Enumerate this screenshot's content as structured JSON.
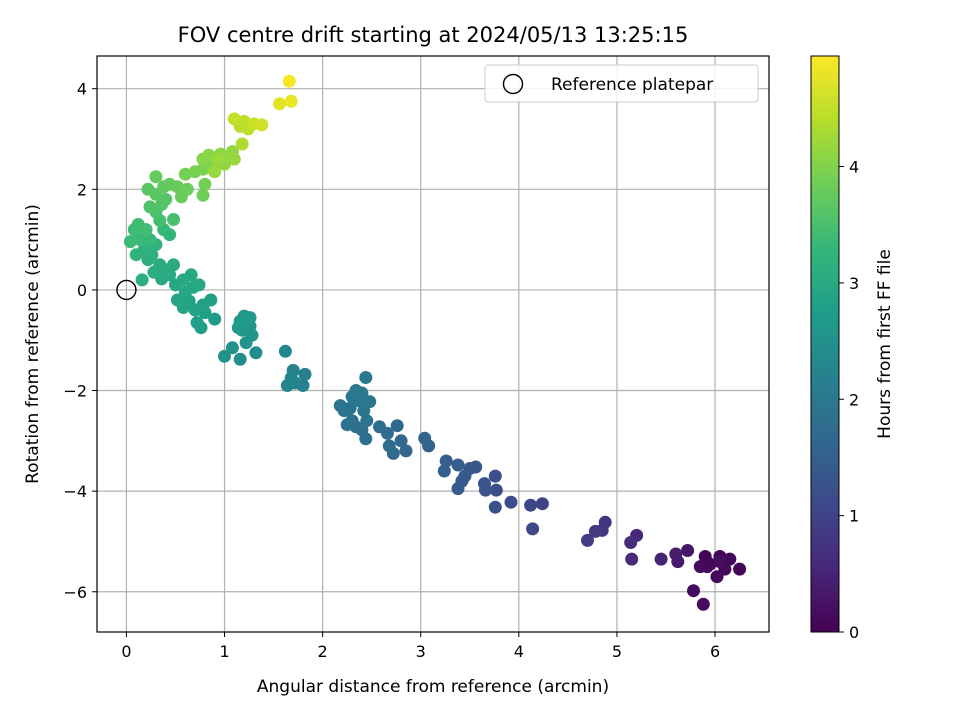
{
  "chart_data": {
    "type": "scatter",
    "title": "FOV centre drift starting at 2024/05/13 13:25:15",
    "xlabel": "Angular distance from reference (arcmin)",
    "ylabel": "Rotation from reference (arcmin)",
    "xlim": [
      -0.3,
      6.55
    ],
    "ylim": [
      -6.8,
      4.65
    ],
    "x_ticks": [
      0,
      1,
      2,
      3,
      4,
      5,
      6
    ],
    "y_ticks": [
      -6,
      -4,
      -2,
      0,
      2,
      4
    ],
    "x_tick_labels": [
      "0",
      "1",
      "2",
      "3",
      "4",
      "5",
      "6"
    ],
    "y_tick_labels": [
      "−6",
      "−4",
      "−2",
      "0",
      "2",
      "4"
    ],
    "grid": true,
    "legend": {
      "placement": "top-right",
      "entries": [
        {
          "label": "Reference platepar",
          "marker": "open-circle"
        }
      ]
    },
    "reference_point": {
      "x": 0,
      "y": 0
    },
    "colorbar": {
      "label": "Hours from first FF file",
      "colormap": "viridis",
      "range": [
        0,
        4.95
      ],
      "ticks": [
        0,
        1,
        2,
        3,
        4
      ],
      "tick_labels": [
        "0",
        "1",
        "2",
        "3",
        "4"
      ]
    },
    "colormap_stops": [
      "#440154",
      "#482878",
      "#3e4989",
      "#31688e",
      "#26828e",
      "#1f9e89",
      "#35b779",
      "#6ece58",
      "#b5de2b",
      "#fde725"
    ],
    "points": [
      {
        "x": 5.9,
        "y": -5.3,
        "t": 0.05
      },
      {
        "x": 6.05,
        "y": -5.3,
        "t": 0.06
      },
      {
        "x": 5.95,
        "y": -5.45,
        "t": 0.07
      },
      {
        "x": 6.15,
        "y": -5.35,
        "t": 0.08
      },
      {
        "x": 6.25,
        "y": -5.55,
        "t": 0.09
      },
      {
        "x": 6.1,
        "y": -5.55,
        "t": 0.1
      },
      {
        "x": 6.02,
        "y": -5.7,
        "t": 0.11
      },
      {
        "x": 5.92,
        "y": -5.5,
        "t": 0.12
      },
      {
        "x": 5.85,
        "y": -5.5,
        "t": 0.13
      },
      {
        "x": 5.88,
        "y": -6.25,
        "t": 0.15
      },
      {
        "x": 5.78,
        "y": -5.98,
        "t": 0.17
      },
      {
        "x": 6.05,
        "y": -5.4,
        "t": 0.18
      },
      {
        "x": 5.72,
        "y": -5.18,
        "t": 0.3
      },
      {
        "x": 5.62,
        "y": -5.4,
        "t": 0.35
      },
      {
        "x": 5.6,
        "y": -5.25,
        "t": 0.4
      },
      {
        "x": 5.45,
        "y": -5.35,
        "t": 0.5
      },
      {
        "x": 5.2,
        "y": -4.88,
        "t": 0.55
      },
      {
        "x": 5.15,
        "y": -5.35,
        "t": 0.6
      },
      {
        "x": 5.14,
        "y": -5.02,
        "t": 0.65
      },
      {
        "x": 4.88,
        "y": -4.62,
        "t": 0.75
      },
      {
        "x": 4.85,
        "y": -4.78,
        "t": 0.8
      },
      {
        "x": 4.78,
        "y": -4.8,
        "t": 0.85
      },
      {
        "x": 4.7,
        "y": -4.98,
        "t": 0.9
      },
      {
        "x": 4.24,
        "y": -4.25,
        "t": 1.0
      },
      {
        "x": 4.12,
        "y": -4.28,
        "t": 1.05
      },
      {
        "x": 4.14,
        "y": -4.75,
        "t": 1.1
      },
      {
        "x": 3.92,
        "y": -4.22,
        "t": 1.15
      },
      {
        "x": 3.76,
        "y": -3.7,
        "t": 1.2
      },
      {
        "x": 3.77,
        "y": -3.98,
        "t": 1.22
      },
      {
        "x": 3.76,
        "y": -4.32,
        "t": 1.25
      },
      {
        "x": 3.65,
        "y": -3.85,
        "t": 1.28
      },
      {
        "x": 3.66,
        "y": -3.98,
        "t": 1.3
      },
      {
        "x": 3.56,
        "y": -3.52,
        "t": 1.33
      },
      {
        "x": 3.5,
        "y": -3.55,
        "t": 1.35
      },
      {
        "x": 3.45,
        "y": -3.7,
        "t": 1.38
      },
      {
        "x": 3.42,
        "y": -3.8,
        "t": 1.4
      },
      {
        "x": 3.38,
        "y": -3.95,
        "t": 1.42
      },
      {
        "x": 3.38,
        "y": -3.48,
        "t": 1.45
      },
      {
        "x": 3.26,
        "y": -3.4,
        "t": 1.48
      },
      {
        "x": 3.24,
        "y": -3.6,
        "t": 1.5
      },
      {
        "x": 3.08,
        "y": -3.1,
        "t": 1.55
      },
      {
        "x": 3.04,
        "y": -2.95,
        "t": 1.58
      },
      {
        "x": 2.85,
        "y": -3.2,
        "t": 1.62
      },
      {
        "x": 2.8,
        "y": -3.0,
        "t": 1.65
      },
      {
        "x": 2.76,
        "y": -2.7,
        "t": 1.68
      },
      {
        "x": 2.72,
        "y": -3.25,
        "t": 1.7
      },
      {
        "x": 2.68,
        "y": -3.1,
        "t": 1.72
      },
      {
        "x": 2.66,
        "y": -2.85,
        "t": 1.74
      },
      {
        "x": 2.58,
        "y": -2.72,
        "t": 1.76
      },
      {
        "x": 2.44,
        "y": -2.96,
        "t": 1.78
      },
      {
        "x": 2.4,
        "y": -2.78,
        "t": 1.8
      },
      {
        "x": 2.34,
        "y": -2.72,
        "t": 1.82
      },
      {
        "x": 2.3,
        "y": -2.6,
        "t": 1.84
      },
      {
        "x": 2.28,
        "y": -2.35,
        "t": 1.86
      },
      {
        "x": 2.25,
        "y": -2.68,
        "t": 1.88
      },
      {
        "x": 2.22,
        "y": -2.4,
        "t": 1.9
      },
      {
        "x": 2.18,
        "y": -2.3,
        "t": 1.92
      },
      {
        "x": 2.48,
        "y": -2.22,
        "t": 1.93
      },
      {
        "x": 2.45,
        "y": -2.6,
        "t": 1.94
      },
      {
        "x": 2.42,
        "y": -2.4,
        "t": 1.95
      },
      {
        "x": 2.36,
        "y": -2.2,
        "t": 1.96
      },
      {
        "x": 2.34,
        "y": -2.0,
        "t": 1.97
      },
      {
        "x": 2.3,
        "y": -2.12,
        "t": 1.98
      },
      {
        "x": 2.4,
        "y": -2.05,
        "t": 1.99
      },
      {
        "x": 2.44,
        "y": -1.74,
        "t": 2.0
      },
      {
        "x": 1.82,
        "y": -1.68,
        "t": 2.15
      },
      {
        "x": 1.8,
        "y": -1.9,
        "t": 2.18
      },
      {
        "x": 1.72,
        "y": -1.85,
        "t": 2.2
      },
      {
        "x": 1.7,
        "y": -1.6,
        "t": 2.22
      },
      {
        "x": 1.68,
        "y": -1.75,
        "t": 2.24
      },
      {
        "x": 1.64,
        "y": -1.9,
        "t": 2.26
      },
      {
        "x": 1.62,
        "y": -1.22,
        "t": 2.3
      },
      {
        "x": 1.32,
        "y": -1.25,
        "t": 2.4
      },
      {
        "x": 1.16,
        "y": -1.38,
        "t": 2.45
      },
      {
        "x": 1.08,
        "y": -1.15,
        "t": 2.5
      },
      {
        "x": 1.0,
        "y": -1.32,
        "t": 2.52
      },
      {
        "x": 1.22,
        "y": -1.05,
        "t": 2.55
      },
      {
        "x": 1.28,
        "y": -0.9,
        "t": 2.58
      },
      {
        "x": 1.18,
        "y": -0.8,
        "t": 2.6
      },
      {
        "x": 1.26,
        "y": -0.72,
        "t": 2.62
      },
      {
        "x": 1.16,
        "y": -0.62,
        "t": 2.64
      },
      {
        "x": 1.2,
        "y": -0.52,
        "t": 2.66
      },
      {
        "x": 1.26,
        "y": -0.55,
        "t": 2.68
      },
      {
        "x": 1.14,
        "y": -0.75,
        "t": 2.7
      },
      {
        "x": 0.9,
        "y": -0.58,
        "t": 2.72
      },
      {
        "x": 0.76,
        "y": -0.75,
        "t": 2.74
      },
      {
        "x": 0.72,
        "y": -0.65,
        "t": 2.76
      },
      {
        "x": 0.8,
        "y": -0.45,
        "t": 2.78
      },
      {
        "x": 0.86,
        "y": -0.2,
        "t": 2.8
      },
      {
        "x": 0.78,
        "y": -0.3,
        "t": 2.82
      },
      {
        "x": 0.7,
        "y": -0.4,
        "t": 2.84
      },
      {
        "x": 0.64,
        "y": -0.22,
        "t": 2.86
      },
      {
        "x": 0.58,
        "y": -0.35,
        "t": 2.88
      },
      {
        "x": 0.52,
        "y": -0.2,
        "t": 2.9
      },
      {
        "x": 0.6,
        "y": -0.05,
        "t": 2.92
      },
      {
        "x": 0.68,
        "y": 0.05,
        "t": 2.94
      },
      {
        "x": 0.74,
        "y": 0.1,
        "t": 2.95
      },
      {
        "x": 0.66,
        "y": 0.3,
        "t": 2.96
      },
      {
        "x": 0.58,
        "y": 0.2,
        "t": 2.97
      },
      {
        "x": 0.5,
        "y": 0.1,
        "t": 2.98
      },
      {
        "x": 0.44,
        "y": 0.3,
        "t": 2.99
      },
      {
        "x": 0.36,
        "y": 0.22,
        "t": 3.0
      },
      {
        "x": 0.48,
        "y": 0.5,
        "t": 3.02
      },
      {
        "x": 0.4,
        "y": 0.4,
        "t": 3.04
      },
      {
        "x": 0.34,
        "y": 0.5,
        "t": 3.06
      },
      {
        "x": 0.28,
        "y": 0.35,
        "t": 3.08
      },
      {
        "x": 0.22,
        "y": 0.6,
        "t": 3.1
      },
      {
        "x": 0.16,
        "y": 0.2,
        "t": 3.12
      },
      {
        "x": 0.26,
        "y": 0.7,
        "t": 3.14
      },
      {
        "x": 0.18,
        "y": 0.8,
        "t": 3.16
      },
      {
        "x": 0.1,
        "y": 0.7,
        "t": 3.18
      },
      {
        "x": 0.3,
        "y": 0.9,
        "t": 3.2
      },
      {
        "x": 0.44,
        "y": 1.1,
        "t": 3.25
      },
      {
        "x": 0.38,
        "y": 1.2,
        "t": 3.3
      },
      {
        "x": 0.24,
        "y": 1.0,
        "t": 3.32
      },
      {
        "x": 0.14,
        "y": 1.0,
        "t": 3.34
      },
      {
        "x": 0.04,
        "y": 0.96,
        "t": 3.36
      },
      {
        "x": 0.08,
        "y": 1.2,
        "t": 3.38
      },
      {
        "x": 0.12,
        "y": 1.3,
        "t": 3.4
      },
      {
        "x": 0.2,
        "y": 1.2,
        "t": 3.42
      },
      {
        "x": 0.34,
        "y": 1.38,
        "t": 3.45
      },
      {
        "x": 0.48,
        "y": 1.4,
        "t": 3.48
      },
      {
        "x": 0.3,
        "y": 1.55,
        "t": 3.52
      },
      {
        "x": 0.24,
        "y": 1.65,
        "t": 3.55
      },
      {
        "x": 0.36,
        "y": 1.7,
        "t": 3.58
      },
      {
        "x": 0.4,
        "y": 1.8,
        "t": 3.62
      },
      {
        "x": 0.3,
        "y": 1.9,
        "t": 3.65
      },
      {
        "x": 0.22,
        "y": 2.0,
        "t": 3.68
      },
      {
        "x": 0.38,
        "y": 2.05,
        "t": 3.7
      },
      {
        "x": 0.44,
        "y": 2.1,
        "t": 3.72
      },
      {
        "x": 0.3,
        "y": 2.25,
        "t": 3.75
      },
      {
        "x": 0.52,
        "y": 2.05,
        "t": 3.78
      },
      {
        "x": 0.56,
        "y": 1.85,
        "t": 3.8
      },
      {
        "x": 0.62,
        "y": 2.0,
        "t": 3.82
      },
      {
        "x": 0.78,
        "y": 1.88,
        "t": 3.85
      },
      {
        "x": 0.8,
        "y": 2.1,
        "t": 3.88
      },
      {
        "x": 0.6,
        "y": 2.3,
        "t": 3.9
      },
      {
        "x": 0.7,
        "y": 2.35,
        "t": 3.92
      },
      {
        "x": 0.78,
        "y": 2.4,
        "t": 3.95
      },
      {
        "x": 0.82,
        "y": 2.5,
        "t": 3.98
      },
      {
        "x": 0.88,
        "y": 2.42,
        "t": 4.0
      },
      {
        "x": 0.92,
        "y": 2.55,
        "t": 4.02
      },
      {
        "x": 0.78,
        "y": 2.6,
        "t": 4.04
      },
      {
        "x": 0.84,
        "y": 2.68,
        "t": 4.06
      },
      {
        "x": 0.96,
        "y": 2.7,
        "t": 4.08
      },
      {
        "x": 1.04,
        "y": 2.62,
        "t": 4.1
      },
      {
        "x": 1.08,
        "y": 2.75,
        "t": 4.12
      },
      {
        "x": 1.0,
        "y": 2.5,
        "t": 4.14
      },
      {
        "x": 1.1,
        "y": 2.6,
        "t": 4.16
      },
      {
        "x": 0.9,
        "y": 2.35,
        "t": 4.18
      },
      {
        "x": 0.94,
        "y": 2.6,
        "t": 4.2
      },
      {
        "x": 1.18,
        "y": 2.9,
        "t": 4.35
      },
      {
        "x": 1.16,
        "y": 3.25,
        "t": 4.4
      },
      {
        "x": 1.24,
        "y": 3.2,
        "t": 4.45
      },
      {
        "x": 1.2,
        "y": 3.35,
        "t": 4.48
      },
      {
        "x": 1.1,
        "y": 3.4,
        "t": 4.52
      },
      {
        "x": 1.3,
        "y": 3.3,
        "t": 4.55
      },
      {
        "x": 1.38,
        "y": 3.28,
        "t": 4.6
      },
      {
        "x": 1.56,
        "y": 3.7,
        "t": 4.75
      },
      {
        "x": 1.68,
        "y": 3.75,
        "t": 4.8
      },
      {
        "x": 1.66,
        "y": 4.15,
        "t": 4.9
      }
    ]
  }
}
